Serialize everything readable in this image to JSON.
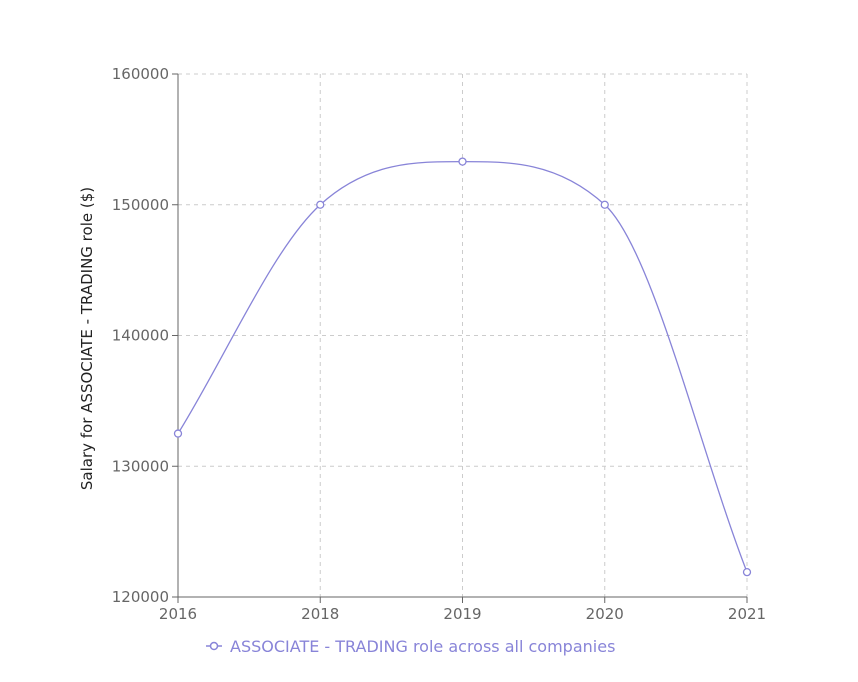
{
  "chart_data": {
    "type": "line",
    "x": [
      2016,
      2018,
      2019,
      2020,
      2021
    ],
    "series": [
      {
        "name": "ASSOCIATE - TRADING role across all companies",
        "values": [
          132500,
          150000,
          153300,
          150000,
          121900
        ]
      }
    ],
    "x_tick_labels": [
      "2016",
      "2018",
      "2019",
      "2020",
      "2021"
    ],
    "y_ticks": [
      120000,
      130000,
      140000,
      150000,
      160000
    ],
    "y_tick_labels": [
      "120000",
      "130000",
      "140000",
      "150000",
      "160000"
    ],
    "ylim": [
      120000,
      160000
    ],
    "ylabel": "Salary for ASSOCIATE - TRADING role ($)",
    "xlabel": "",
    "title": "",
    "grid": true,
    "legend_position": "bottom",
    "color": "#8884d8"
  }
}
